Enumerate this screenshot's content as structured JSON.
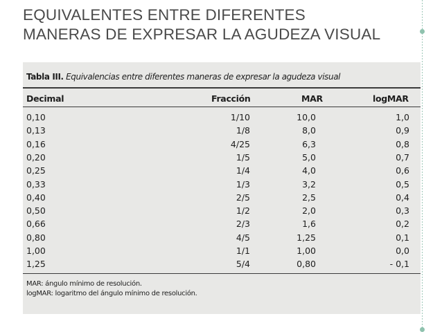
{
  "slide": {
    "title": "EQUIVALENTES ENTRE DIFERENTES MANERAS DE EXPRESAR LA AGUDEZA VISUAL"
  },
  "table": {
    "caption_label": "Tabla III.",
    "caption_text": "Equivalencias entre diferentes maneras de expresar la agudeza visual",
    "headers": {
      "decimal": "Decimal",
      "fraccion": "Fracción",
      "mar": "MAR",
      "logmar": "logMAR"
    },
    "rows": [
      {
        "decimal": "0,10",
        "fraccion": "1/10",
        "mar": "10,0",
        "logmar": "1,0"
      },
      {
        "decimal": "0,13",
        "fraccion": "1/8",
        "mar": "8,0",
        "logmar": "0,9"
      },
      {
        "decimal": "0,16",
        "fraccion": "4/25",
        "mar": "6,3",
        "logmar": "0,8"
      },
      {
        "decimal": "0,20",
        "fraccion": "1/5",
        "mar": "5,0",
        "logmar": "0,7"
      },
      {
        "decimal": "0,25",
        "fraccion": "1/4",
        "mar": "4,0",
        "logmar": "0,6"
      },
      {
        "decimal": "0,33",
        "fraccion": "1/3",
        "mar": "3,2",
        "logmar": "0,5"
      },
      {
        "decimal": "0,40",
        "fraccion": "2/5",
        "mar": "2,5",
        "logmar": "0,4"
      },
      {
        "decimal": "0,50",
        "fraccion": "1/2",
        "mar": "2,0",
        "logmar": "0,3"
      },
      {
        "decimal": "0,66",
        "fraccion": "2/3",
        "mar": "1,6",
        "logmar": "0,2"
      },
      {
        "decimal": "0,80",
        "fraccion": "4/5",
        "mar": "1,25",
        "logmar": "0,1"
      },
      {
        "decimal": "1,00",
        "fraccion": "1/1",
        "mar": "1,00",
        "logmar": "0,0"
      },
      {
        "decimal": "1,25",
        "fraccion": "5/4",
        "mar": "0,80",
        "logmar": "- 0,1"
      }
    ],
    "notes": [
      "MAR: ángulo mínimo de resolución.",
      "logMAR: logaritmo del ángulo mínimo de resolución."
    ]
  }
}
